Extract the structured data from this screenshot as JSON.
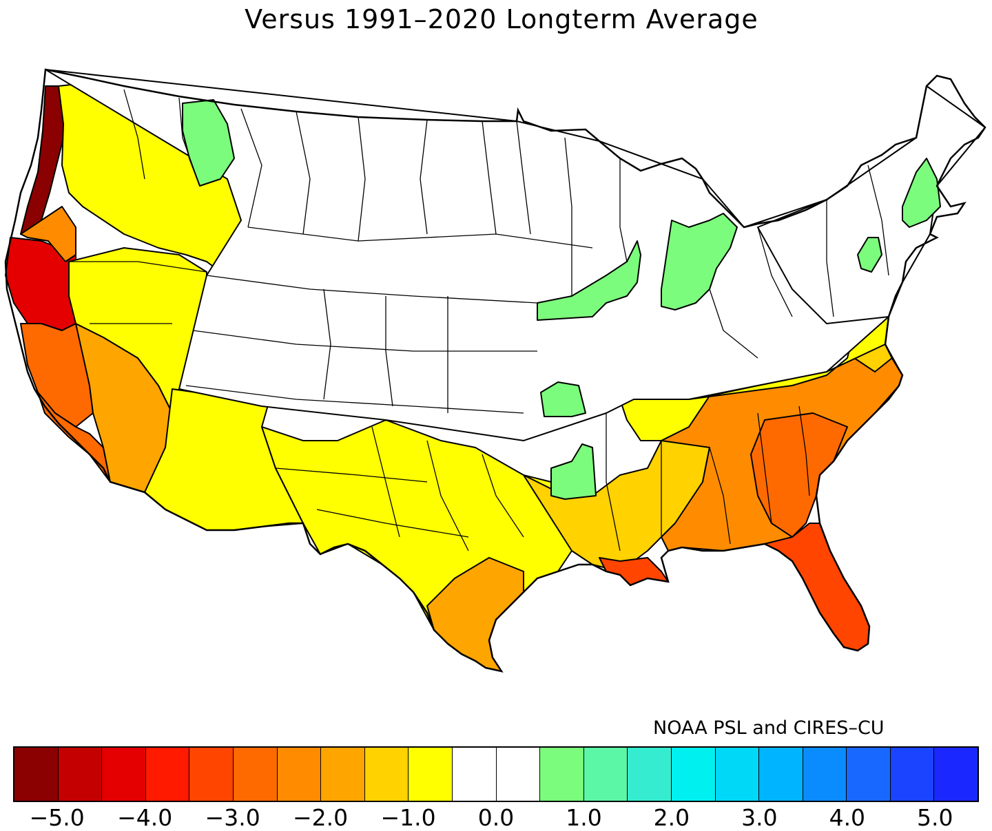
{
  "title": "Versus 1991–2020 Longterm Average",
  "credit": "NOAA PSL and CIRES–CU",
  "colorbar": {
    "colors": [
      "#8b0000",
      "#c40000",
      "#e40000",
      "#ff1a00",
      "#ff4500",
      "#ff6a00",
      "#ff8c00",
      "#ffa500",
      "#ffd200",
      "#ffff00",
      "#ffffff",
      "#ffffff",
      "#7cfc7c",
      "#5cf7a6",
      "#36ecd0",
      "#00f0f0",
      "#00d8f8",
      "#00b4ff",
      "#0a8cff",
      "#1868ff",
      "#1a44ff",
      "#1a28ff"
    ],
    "tick_labels": [
      "−5.0",
      "−4.0",
      "−3.0",
      "−2.0",
      "−1.0",
      "0.0",
      "1.0",
      "2.0",
      "3.0",
      "4.0",
      "5.0"
    ],
    "tick_values": [
      -5,
      -4,
      -3,
      -2,
      -1,
      0,
      1,
      2,
      3,
      4,
      5
    ]
  },
  "map": {
    "regions": [
      {
        "name": "nw-coast-strip",
        "value": -5.2
      },
      {
        "name": "n-california",
        "value": -4.5
      },
      {
        "name": "central-california",
        "value": -3.0
      },
      {
        "name": "s-california-coast",
        "value": -3.0
      },
      {
        "name": "s-california-desert",
        "value": -2.0
      },
      {
        "name": "oregon-coast",
        "value": -2.5
      },
      {
        "name": "pacific-northwest",
        "value": -1.0
      },
      {
        "name": "great-basin",
        "value": -1.0
      },
      {
        "name": "southwest",
        "value": -1.0
      },
      {
        "name": "texas",
        "value": -1.0
      },
      {
        "name": "s-texas",
        "value": -2.0
      },
      {
        "name": "gulf-coast",
        "value": -1.5
      },
      {
        "name": "louisiana-delta",
        "value": -3.5
      },
      {
        "name": "southeast",
        "value": -2.5
      },
      {
        "name": "georgia-carolinas-coast",
        "value": -3.0
      },
      {
        "name": "florida",
        "value": -3.2
      },
      {
        "name": "mid-atlantic",
        "value": -1.5
      },
      {
        "name": "tennessee",
        "value": -1.0
      },
      {
        "name": "great-plains",
        "value": 0.0
      },
      {
        "name": "northeast",
        "value": 0.0
      },
      {
        "name": "montana-idaho-pocket",
        "value": 0.6
      },
      {
        "name": "iowa-illinois",
        "value": 0.6
      },
      {
        "name": "indiana-michigan",
        "value": 0.6
      },
      {
        "name": "missouri",
        "value": 0.6
      },
      {
        "name": "arkansas",
        "value": 0.6
      },
      {
        "name": "new-england",
        "value": 0.6
      },
      {
        "name": "pennsylvania",
        "value": 0.6
      }
    ]
  }
}
